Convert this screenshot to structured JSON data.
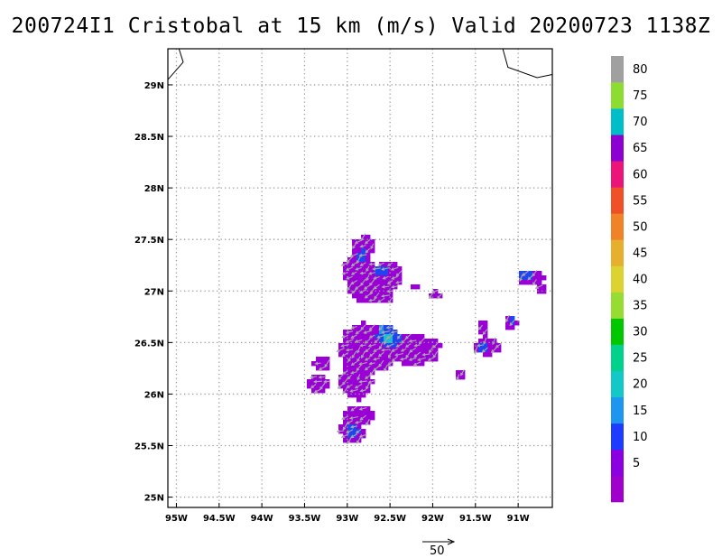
{
  "title": "200724I1 Cristobal at 15 km (m/s) Valid 20200723 1138Z",
  "map": {
    "lon_range": [
      -95.1,
      -90.6
    ],
    "lat_range": [
      24.9,
      29.35
    ],
    "x_ticks": [
      {
        "value": -95.0,
        "label": "95W"
      },
      {
        "value": -94.5,
        "label": "94.5W"
      },
      {
        "value": -94.0,
        "label": "94W"
      },
      {
        "value": -93.5,
        "label": "93.5W"
      },
      {
        "value": -93.0,
        "label": "93W"
      },
      {
        "value": -92.5,
        "label": "92.5W"
      },
      {
        "value": -92.0,
        "label": "92W"
      },
      {
        "value": -91.5,
        "label": "91.5W"
      },
      {
        "value": -91.0,
        "label": "91W"
      }
    ],
    "y_ticks": [
      {
        "value": 25.0,
        "label": "25N"
      },
      {
        "value": 25.5,
        "label": "25.5N"
      },
      {
        "value": 26.0,
        "label": "26N"
      },
      {
        "value": 26.5,
        "label": "26.5N"
      },
      {
        "value": 27.0,
        "label": "27N"
      },
      {
        "value": 27.5,
        "label": "27.5N"
      },
      {
        "value": 28.0,
        "label": "28N"
      },
      {
        "value": 28.5,
        "label": "28.5N"
      },
      {
        "value": 29.0,
        "label": "29N"
      }
    ],
    "grid": "dotted",
    "coastlines": [
      [
        [
          -95.1,
          29.05
        ],
        [
          -94.92,
          29.22
        ],
        [
          -94.97,
          29.35
        ]
      ],
      [
        [
          -91.18,
          29.35
        ],
        [
          -91.12,
          29.17
        ],
        [
          -90.78,
          29.07
        ],
        [
          -90.6,
          29.1
        ]
      ]
    ],
    "colors": {
      "5": "#9a00d6",
      "10": "#1f45f0",
      "15": "#1b98ee",
      "20": "#12c0d0",
      "arrow": "#a8a8a8"
    }
  },
  "colorbar": {
    "colors": [
      "#a000cc",
      "#8a00e0",
      "#1e3cff",
      "#1e96f0",
      "#14c8c8",
      "#00d28c",
      "#00c800",
      "#96dc32",
      "#dcd232",
      "#e6af2d",
      "#f08228",
      "#f05028",
      "#eb1478",
      "#8c00d2",
      "#00bec8",
      "#8cdc32",
      "#a0a0a0"
    ],
    "labels": [
      "5",
      "10",
      "15",
      "20",
      "25",
      "30",
      "35",
      "40",
      "45",
      "50",
      "55",
      "60",
      "65",
      "70",
      "75",
      "80"
    ]
  },
  "reference_vector": {
    "label": "50"
  }
}
